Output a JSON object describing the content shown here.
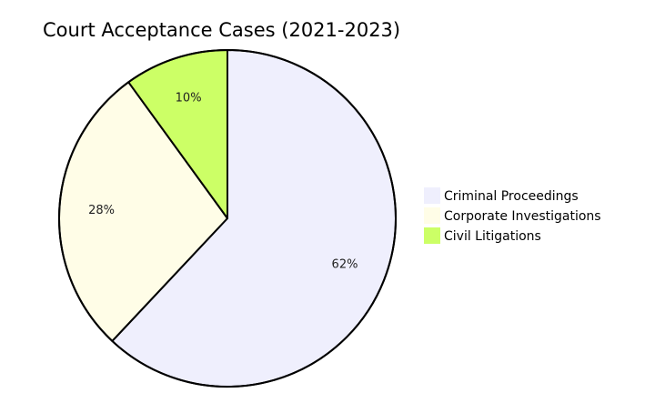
{
  "chart_data": {
    "type": "pie",
    "title": "Court Acceptance Cases (2021-2023)",
    "categories": [
      "Criminal Proceedings",
      "Corporate Investigations",
      "Civil Litigations"
    ],
    "values": [
      62,
      28,
      10
    ],
    "labels": [
      "62%",
      "28%",
      "10%"
    ],
    "colors": [
      "#efeffd",
      "#fffde7",
      "#ccff66"
    ],
    "stroke_color": "#000000",
    "legend_placement": "right",
    "start_angle": "top, clockwise"
  }
}
